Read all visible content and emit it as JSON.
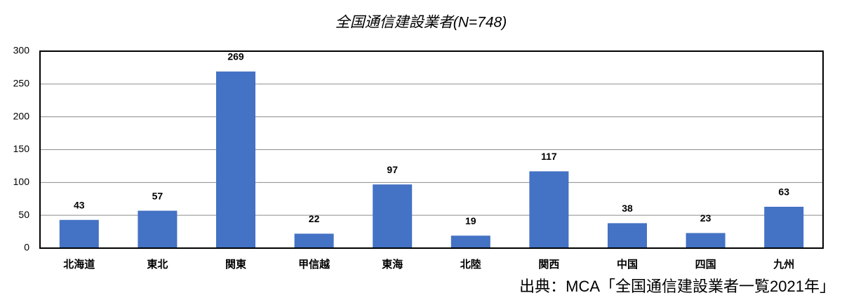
{
  "chart_data": {
    "type": "bar",
    "title": "全国通信建設業者(N=748)",
    "categories": [
      "北海道",
      "東北",
      "関東",
      "甲信越",
      "東海",
      "北陸",
      "関西",
      "中国",
      "四国",
      "九州"
    ],
    "values": [
      43,
      57,
      269,
      22,
      97,
      19,
      117,
      38,
      23,
      63
    ],
    "color": "#4472c4",
    "ylim": [
      0,
      300
    ],
    "yticks": [
      0,
      50,
      100,
      150,
      200,
      250,
      300
    ],
    "grid": true,
    "annotation": "出典：MCA「全国通信建設業者一覧2021年」"
  }
}
